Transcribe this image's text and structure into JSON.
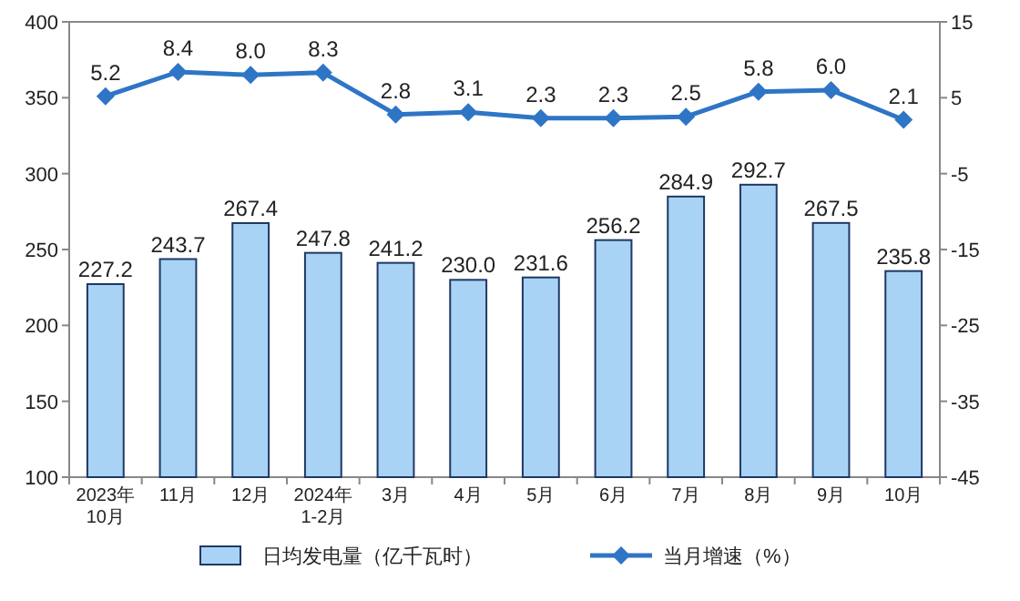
{
  "chart_data": {
    "type": "bar",
    "categories": [
      "2023年\n10月",
      "11月",
      "12月",
      "2024年\n1-2月",
      "3月",
      "4月",
      "5月",
      "6月",
      "7月",
      "8月",
      "9月",
      "10月"
    ],
    "series": [
      {
        "name": "日均发电量（亿千瓦时）",
        "color": "#a9d3f5",
        "values": [
          227.2,
          243.7,
          267.4,
          247.8,
          241.2,
          230.0,
          231.6,
          256.2,
          284.9,
          292.7,
          267.5,
          235.8
        ],
        "value_labels": [
          "227.2",
          "243.7",
          "267.4",
          "247.8",
          "241.2",
          "230.0",
          "231.6",
          "256.2",
          "284.9",
          "292.7",
          "267.5",
          "235.8"
        ]
      },
      {
        "name": "当月增速（%）",
        "type": "line",
        "axis": "y2",
        "color": "#2e75c6",
        "values": [
          5.2,
          8.4,
          8.0,
          8.3,
          2.8,
          3.1,
          2.3,
          2.3,
          2.5,
          5.8,
          6.0,
          2.1
        ],
        "value_labels": [
          "5.2",
          "8.4",
          "8.0",
          "8.3",
          "2.8",
          "3.1",
          "2.3",
          "2.3",
          "2.5",
          "5.8",
          "6.0",
          "2.1"
        ]
      }
    ],
    "ylim": [
      100,
      400
    ],
    "yticks": [
      100,
      150,
      200,
      250,
      300,
      350,
      400
    ],
    "y2lim": [
      -45,
      15
    ],
    "y2ticks": [
      -45,
      -35,
      -25,
      -15,
      -5,
      5,
      15
    ],
    "marker": "diamond",
    "legend": "bottom",
    "grid": false
  }
}
